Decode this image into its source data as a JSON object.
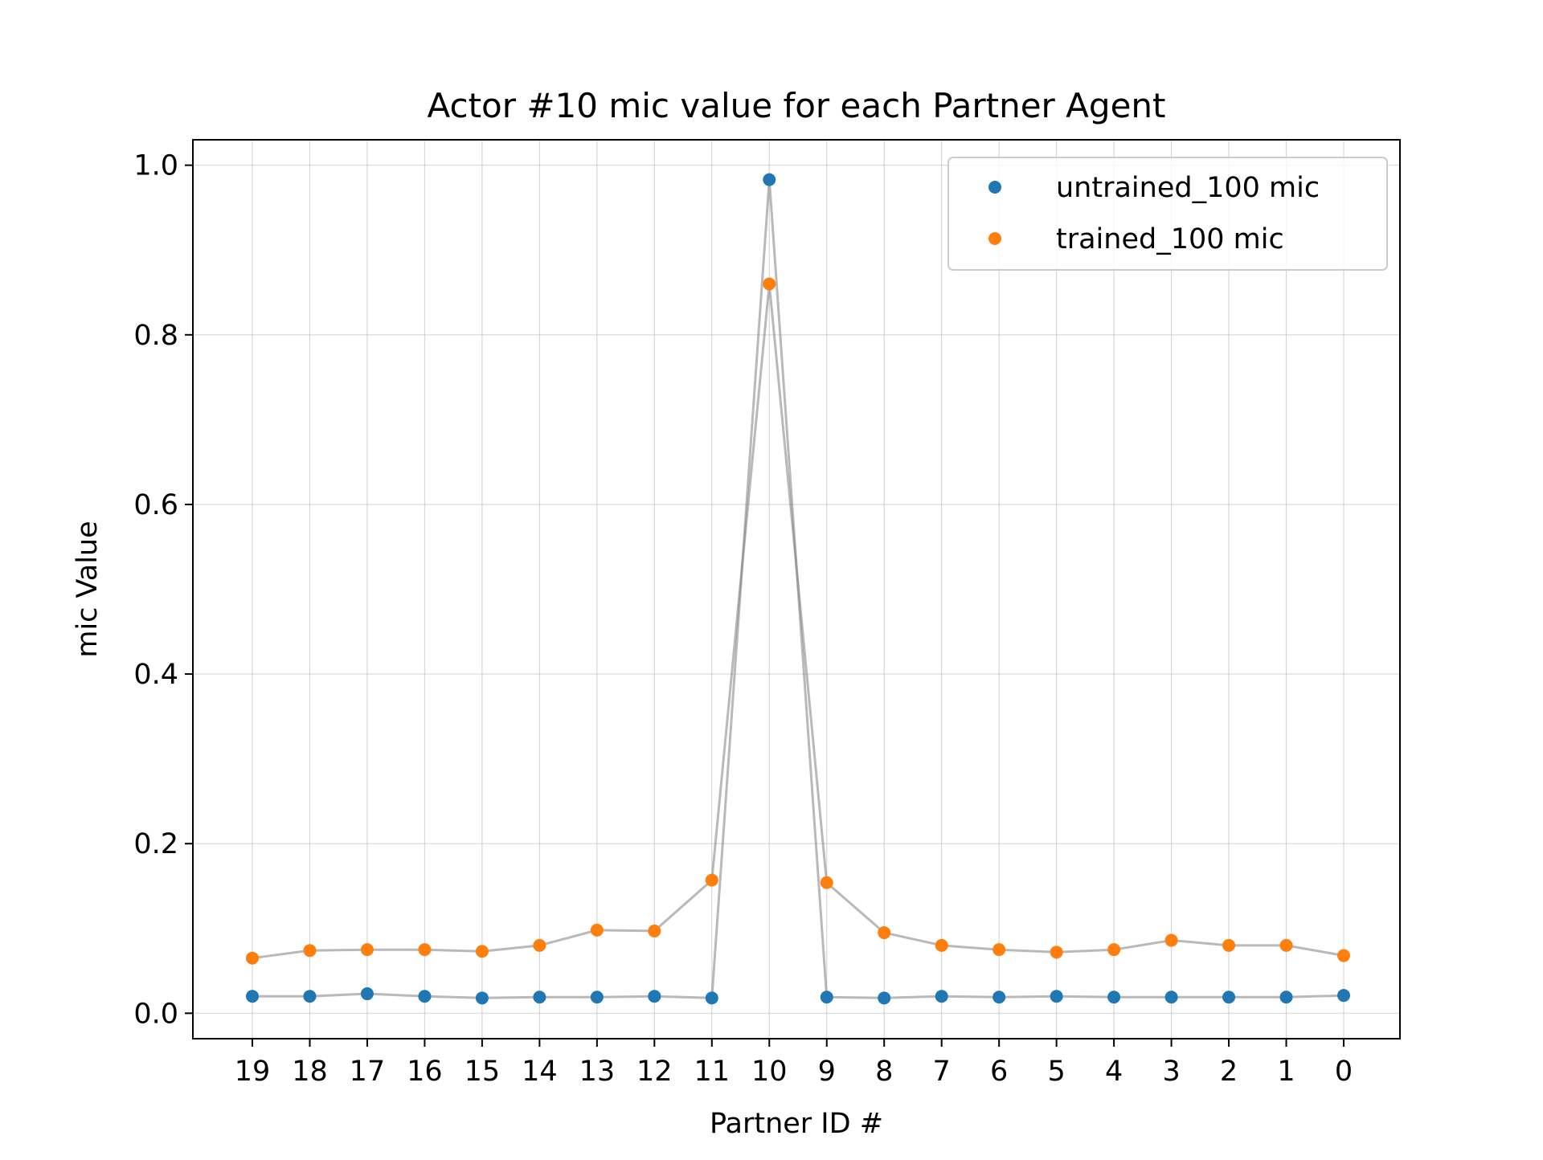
{
  "chart_data": {
    "type": "scatter",
    "title": "Actor #10 mic value for each Partner Agent",
    "xlabel": "Partner ID #",
    "ylabel": "mic Value",
    "categories": [
      "19",
      "18",
      "17",
      "16",
      "15",
      "14",
      "13",
      "12",
      "11",
      "10",
      "9",
      "8",
      "7",
      "6",
      "5",
      "4",
      "3",
      "2",
      "1",
      "0"
    ],
    "yticks": [
      "0.0",
      "0.2",
      "0.4",
      "0.6",
      "0.8",
      "1.0"
    ],
    "ylim": [
      -0.03,
      1.03
    ],
    "grid": true,
    "legend_position": "upper right",
    "series": [
      {
        "name": "untrained_100 mic",
        "color": "#1f77b4",
        "values": [
          0.02,
          0.02,
          0.023,
          0.02,
          0.018,
          0.019,
          0.019,
          0.02,
          0.018,
          0.983,
          0.019,
          0.018,
          0.02,
          0.019,
          0.02,
          0.019,
          0.019,
          0.019,
          0.019,
          0.021
        ]
      },
      {
        "name": "trained_100 mic",
        "color": "#ff7f0e",
        "values": [
          0.065,
          0.074,
          0.075,
          0.075,
          0.073,
          0.08,
          0.098,
          0.097,
          0.157,
          0.86,
          0.154,
          0.095,
          0.08,
          0.075,
          0.072,
          0.075,
          0.086,
          0.08,
          0.08,
          0.068
        ]
      }
    ],
    "connector_color": "#808080"
  }
}
